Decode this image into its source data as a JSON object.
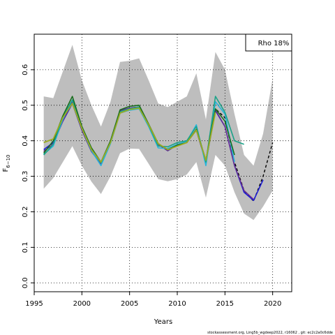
{
  "chart_data": {
    "type": "line",
    "title": "",
    "xlabel": "Years",
    "ylabel": "F6–10",
    "ylabel_main": "F",
    "ylabel_sub": "6−10",
    "xlim": [
      1995,
      2022
    ],
    "ylim": [
      -0.025,
      0.7
    ],
    "x_ticks": [
      1995,
      2000,
      2005,
      2010,
      2015,
      2020
    ],
    "x_tick_labels": [
      "1995",
      "2000",
      "2005",
      "2010",
      "2015",
      "2020"
    ],
    "y_ticks": [
      0.0,
      0.1,
      0.2,
      0.3,
      0.4,
      0.5,
      0.6
    ],
    "y_tick_labels": [
      "0.0",
      "0.1",
      "0.2",
      "0.3",
      "0.4",
      "0.5",
      "0.6"
    ],
    "grid": true,
    "legend_placement": "top-right",
    "annotation": "Rho 18%",
    "footer": "stockassessment.org, Ling5b_wgdeep2022, r16062 , git: ec2c2a0c6dde",
    "band": {
      "color": "#bebebe",
      "x": [
        1996,
        1997,
        1998,
        1999,
        2000,
        2001,
        2002,
        2003,
        2004,
        2005,
        2006,
        2007,
        2008,
        2009,
        2010,
        2011,
        2012,
        2013,
        2014,
        2015,
        2016,
        2017,
        2018,
        2019,
        2020
      ],
      "upper": [
        0.525,
        0.52,
        0.595,
        0.67,
        0.57,
        0.5,
        0.44,
        0.51,
        0.622,
        0.625,
        0.632,
        0.57,
        0.505,
        0.495,
        0.51,
        0.525,
        0.59,
        0.46,
        0.65,
        0.6,
        0.475,
        0.36,
        0.33,
        0.42,
        0.575
      ],
      "lower": [
        0.265,
        0.295,
        0.34,
        0.385,
        0.33,
        0.285,
        0.25,
        0.3,
        0.365,
        0.378,
        0.377,
        0.335,
        0.292,
        0.286,
        0.292,
        0.305,
        0.34,
        0.24,
        0.36,
        0.33,
        0.255,
        0.195,
        0.177,
        0.215,
        0.26
      ]
    },
    "series": [
      {
        "color": "#000000",
        "dashed": true,
        "width": 1.4,
        "x_start": 1996,
        "values": [
          0.37,
          0.395,
          0.465,
          0.515,
          0.43,
          0.37,
          0.335,
          0.395,
          0.485,
          0.492,
          0.495,
          0.445,
          0.39,
          0.372,
          0.39,
          0.395,
          0.43,
          0.34,
          0.49,
          0.465,
          0.34,
          0.26,
          0.23,
          0.3,
          0.395
        ]
      },
      {
        "color": "#1b1bd6",
        "dashed": false,
        "width": 1.6,
        "x_start": 1996,
        "values": [
          0.375,
          0.395,
          0.455,
          0.505,
          0.43,
          0.37,
          0.335,
          0.395,
          0.485,
          0.492,
          0.495,
          0.445,
          0.39,
          0.372,
          0.388,
          0.395,
          0.43,
          0.34,
          0.485,
          0.44,
          0.33,
          0.255,
          0.232,
          0.29
        ]
      },
      {
        "color": "#6a2d8e",
        "dashed": false,
        "width": 1.4,
        "x_start": 1996,
        "values": [
          0.37,
          0.39,
          0.455,
          0.51,
          0.43,
          0.37,
          0.335,
          0.395,
          0.485,
          0.492,
          0.495,
          0.445,
          0.39,
          0.372,
          0.389,
          0.395,
          0.43,
          0.34,
          0.487,
          0.44,
          0.33,
          0.26,
          0.235
        ]
      },
      {
        "color": "#26b5dc",
        "dashed": false,
        "width": 1.6,
        "x_start": 1996,
        "values": [
          0.362,
          0.385,
          0.46,
          0.515,
          0.435,
          0.372,
          0.33,
          0.392,
          0.478,
          0.486,
          0.49,
          0.44,
          0.38,
          0.378,
          0.39,
          0.398,
          0.445,
          0.33,
          0.51,
          0.475,
          0.34
        ]
      },
      {
        "color": "#1ca389",
        "dashed": false,
        "width": 1.6,
        "x_start": 1996,
        "values": [
          0.36,
          0.39,
          0.465,
          0.515,
          0.44,
          0.378,
          0.338,
          0.398,
          0.482,
          0.49,
          0.495,
          0.443,
          0.385,
          0.383,
          0.395,
          0.4,
          0.44,
          0.34,
          0.525,
          0.48,
          0.4,
          0.39
        ]
      },
      {
        "color": "#186d1d",
        "dashed": false,
        "width": 1.6,
        "x_start": 1996,
        "values": [
          0.365,
          0.4,
          0.47,
          0.525,
          0.44,
          0.38,
          0.34,
          0.4,
          0.487,
          0.497,
          0.5,
          0.447,
          0.392,
          0.375,
          0.388,
          0.395,
          0.432,
          0.345,
          0.49,
          0.455,
          0.36
        ]
      },
      {
        "color": "#9aab22",
        "dashed": false,
        "width": 1.8,
        "x_start": 1996,
        "values": [
          0.395,
          0.405,
          0.465,
          0.505,
          0.435,
          0.375,
          0.34,
          0.395,
          0.478,
          0.488,
          0.492,
          0.445,
          0.392,
          0.375,
          0.385,
          0.395,
          0.43,
          0.345,
          0.48
        ]
      }
    ]
  }
}
